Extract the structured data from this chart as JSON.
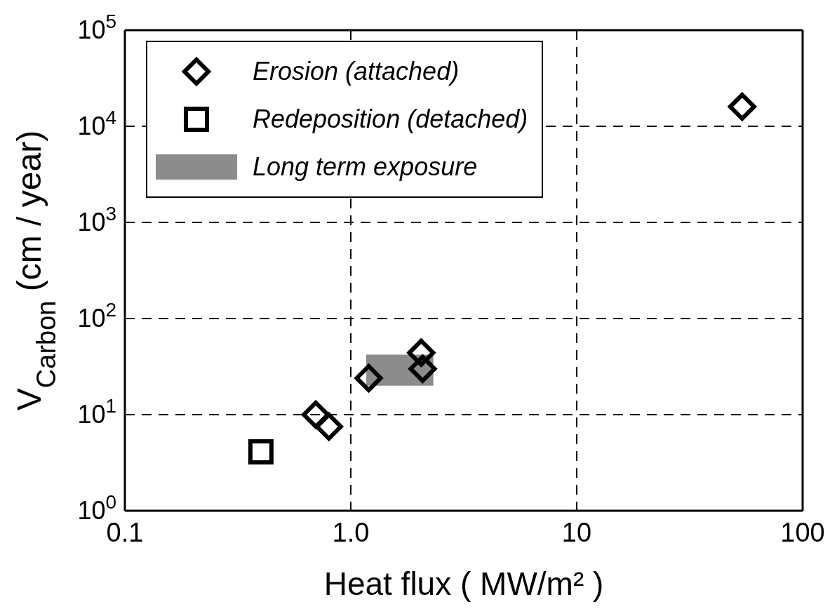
{
  "chart_data": {
    "type": "scatter",
    "xlabel": "Heat flux ( MW/m² )",
    "ylabel": "V$_{Carbon}$ (cm / year)",
    "log": "xy",
    "grid": true,
    "legend": "top left",
    "xlim": [
      0.1,
      100
    ],
    "xticks": [
      0.1,
      {
        "value": 1,
        "label": "1.0"
      },
      10,
      100
    ],
    "ylim": [
      1,
      100000
    ],
    "yticks": [
      {
        "value": 1,
        "label": "10$^{0}$"
      },
      {
        "value": 10,
        "label": "10$^{1}$"
      },
      {
        "value": 100,
        "label": "10$^{2}$"
      },
      {
        "value": 1000,
        "label": "10$^{3}$"
      },
      {
        "value": 10000,
        "label": "10$^{4}$"
      },
      {
        "value": 100000,
        "label": "10$^{5}$"
      }
    ],
    "series": [
      {
        "name": "Erosion (attached)",
        "type": "scatter",
        "marker": "diamond",
        "color": "#000000",
        "x": [
          0.7,
          0.8,
          1.2,
          2.05,
          2.08,
          54
        ],
        "values": [
          10,
          7.5,
          24,
          44,
          30,
          16000
        ]
      },
      {
        "name": "Redeposition (detached)",
        "type": "scatter",
        "marker": "square",
        "color": "#000000",
        "x": [
          0.4
        ],
        "values": [
          4.1
        ]
      },
      {
        "name": "Long term exposure",
        "type": "area",
        "color": "#8c8c8c",
        "x": [
          1.17,
          2.32
        ],
        "values": [
          null,
          null
        ],
        "lower": [
          20,
          20
        ],
        "upper": [
          42,
          42
        ]
      }
    ]
  }
}
